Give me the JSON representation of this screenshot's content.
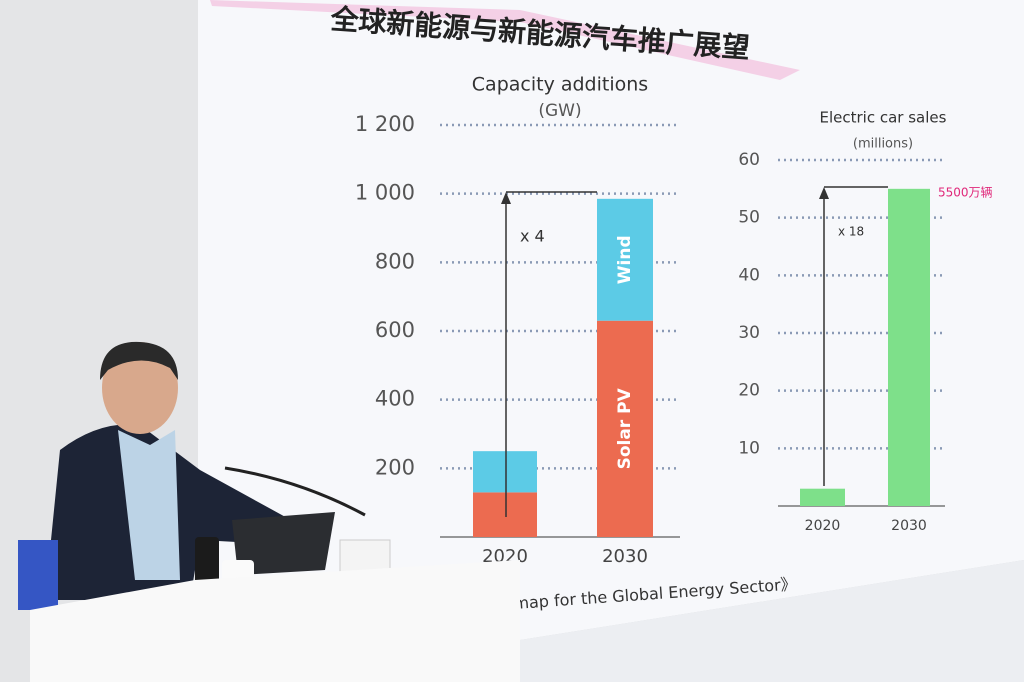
{
  "slide_title": "全球新能源与新能源汽车推广展望",
  "footer": "dmap for the Global Energy Sector》",
  "chart_data": [
    {
      "type": "bar",
      "stacked": true,
      "title": "Capacity additions",
      "subtitle": "(GW)",
      "categories": [
        "2020",
        "2030"
      ],
      "series": [
        {
          "name": "Solar PV",
          "color": "#ec6b50",
          "values": [
            130,
            630
          ]
        },
        {
          "name": "Wind",
          "color": "#5ccbe6",
          "values": [
            120,
            355
          ]
        }
      ],
      "ylim": [
        0,
        1200
      ],
      "yticks": [
        200,
        400,
        600,
        800,
        {
          "value": 1000,
          "label": "1 000"
        },
        {
          "value": 1200,
          "label": "1 200"
        }
      ],
      "annotation": "x 4"
    },
    {
      "type": "bar",
      "title": "Electric car sales",
      "subtitle": "(millions)",
      "categories": [
        "2020",
        "2030"
      ],
      "values": [
        3,
        55
      ],
      "value_labels": [
        null,
        "5500万辆"
      ],
      "color": "#7ee08a",
      "ylim": [
        0,
        60
      ],
      "yticks": [
        10,
        20,
        30,
        40,
        50,
        60
      ],
      "annotation": "x 18"
    }
  ]
}
